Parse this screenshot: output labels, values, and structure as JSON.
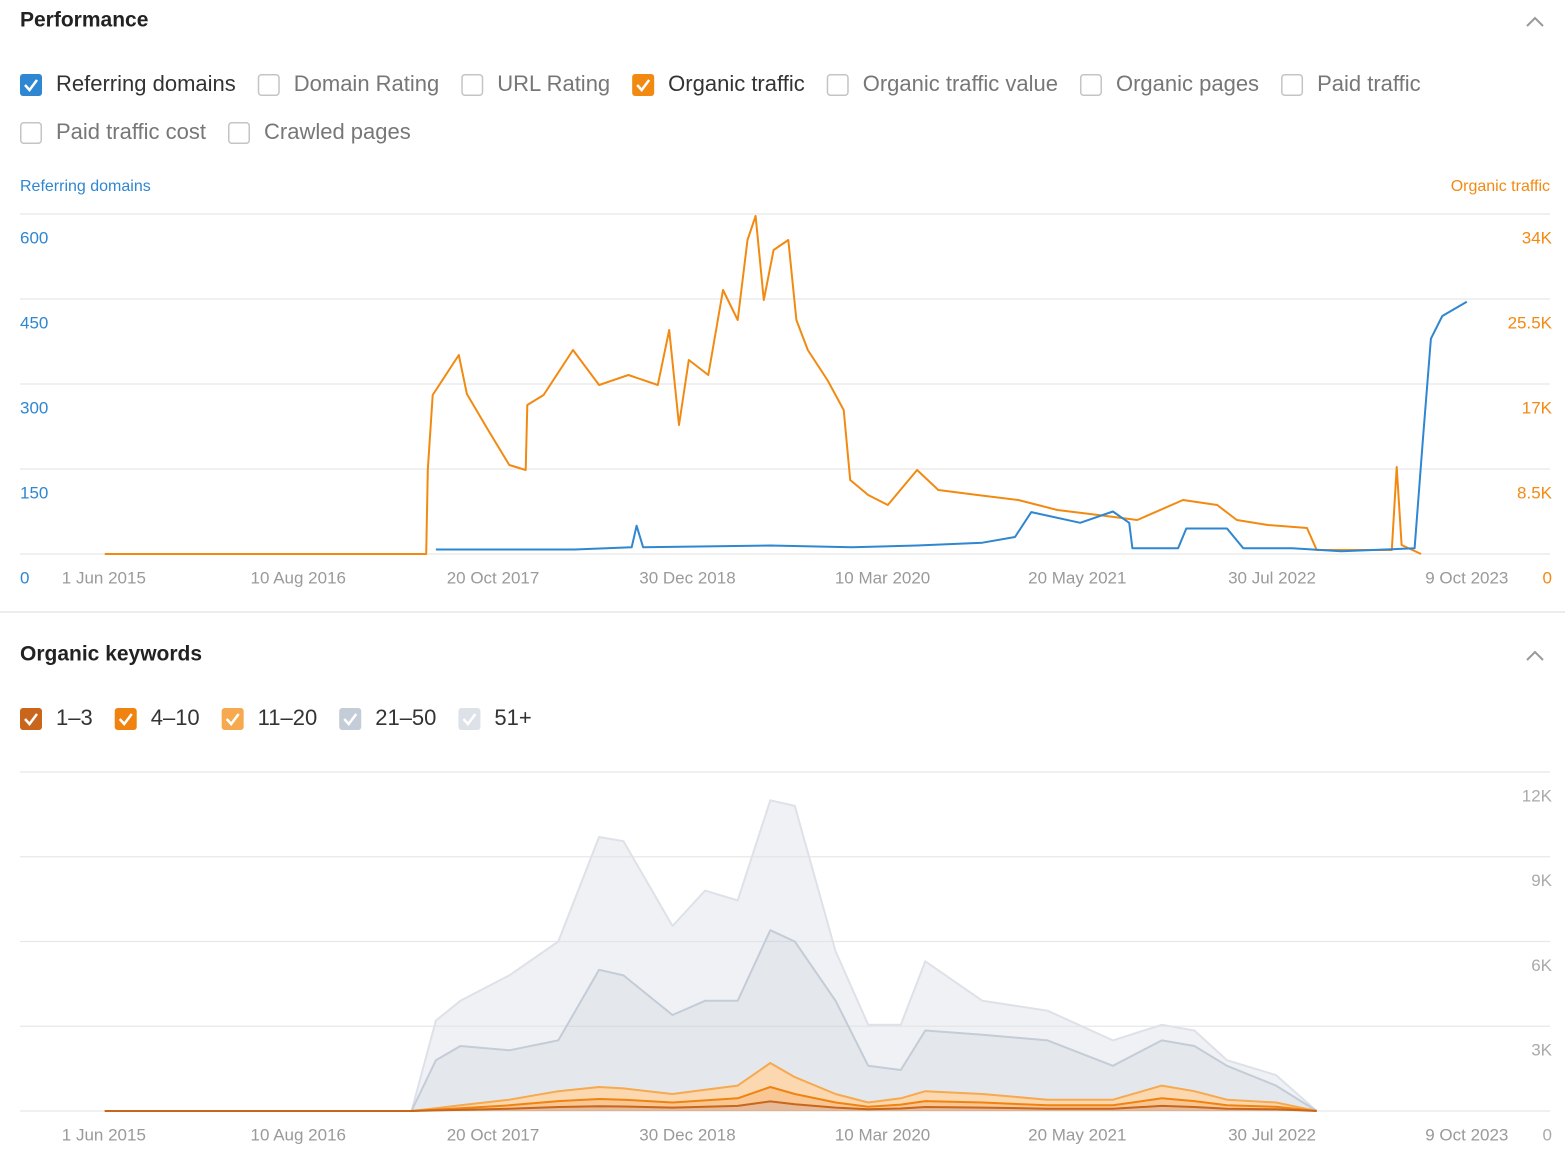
{
  "performance": {
    "title": "Performance",
    "options": [
      {
        "label": "Referring domains",
        "checked": true,
        "color": "#2f86d1"
      },
      {
        "label": "Domain Rating",
        "checked": false
      },
      {
        "label": "URL Rating",
        "checked": false
      },
      {
        "label": "Organic traffic",
        "checked": true,
        "color": "#f28a12"
      },
      {
        "label": "Organic traffic value",
        "checked": false
      },
      {
        "label": "Organic pages",
        "checked": false
      },
      {
        "label": "Paid traffic",
        "checked": false
      },
      {
        "label": "Paid traffic cost",
        "checked": false
      },
      {
        "label": "Crawled pages",
        "checked": false
      }
    ]
  },
  "organic_keywords": {
    "title": "Organic keywords"
  },
  "chart_data": [
    {
      "type": "line",
      "xlim": [
        2014.9,
        2024.28
      ],
      "xticks": [
        {
          "value": 2015.414,
          "label": "1 Jun 2015"
        },
        {
          "value": 2016.606,
          "label": "10 Aug 2016"
        },
        {
          "value": 2017.8,
          "label": "20 Oct 2017"
        },
        {
          "value": 2018.992,
          "label": "30 Dec 2018"
        },
        {
          "value": 2020.188,
          "label": "10 Mar 2020"
        },
        {
          "value": 2021.382,
          "label": "20 May 2021"
        },
        {
          "value": 2022.576,
          "label": "30 Jul 2022"
        },
        {
          "value": 2023.77,
          "label": "9 Oct 2023"
        }
      ],
      "ylim": [
        0,
        600
      ],
      "yticks": [
        0,
        150,
        300,
        450,
        600
      ],
      "y2lim": [
        0,
        34000
      ],
      "y2ticks": [
        {
          "value": 0,
          "label": "0"
        },
        {
          "value": 8500,
          "label": "8.5K"
        },
        {
          "value": 17000,
          "label": "17K"
        },
        {
          "value": 25500,
          "label": "25.5K"
        },
        {
          "value": 34000,
          "label": "34K"
        }
      ],
      "grid": true,
      "series": [
        {
          "name": "Referring domains",
          "color": "#2f86d1",
          "x": [
            2017.45,
            2018.3,
            2018.65,
            2018.68,
            2018.72,
            2019.5,
            2020.0,
            2020.4,
            2020.8,
            2021.0,
            2021.1,
            2021.4,
            2021.6,
            2021.7,
            2021.72,
            2022.0,
            2022.05,
            2022.3,
            2022.4,
            2022.7,
            2023.0,
            2023.45,
            2023.5,
            2023.55,
            2023.62,
            2023.77
          ],
          "values": [
            8,
            8,
            12,
            50,
            12,
            15,
            12,
            15,
            20,
            30,
            74,
            55,
            75,
            55,
            10,
            10,
            45,
            45,
            10,
            10,
            5,
            10,
            200,
            380,
            420,
            445
          ]
        },
        {
          "name": "Organic traffic",
          "color": "#f28a12",
          "axis": "y2",
          "x": [
            2015.42,
            2017.39,
            2017.4,
            2017.43,
            2017.59,
            2017.64,
            2017.77,
            2017.9,
            2018.0,
            2018.01,
            2018.11,
            2018.29,
            2018.45,
            2018.63,
            2018.81,
            2018.88,
            2018.94,
            2019.0,
            2019.12,
            2019.21,
            2019.3,
            2019.36,
            2019.41,
            2019.46,
            2019.52,
            2019.61,
            2019.66,
            2019.73,
            2019.85,
            2019.95,
            2019.99,
            2020.1,
            2020.22,
            2020.4,
            2020.53,
            2020.77,
            2021.02,
            2021.26,
            2021.51,
            2021.75,
            2022.03,
            2022.24,
            2022.36,
            2022.55,
            2022.79,
            2022.85,
            2023.31,
            2023.34,
            2023.37,
            2023.49
          ],
          "values": [
            0,
            0,
            8400,
            15900,
            19900,
            16000,
            12400,
            8900,
            8400,
            14900,
            15900,
            20400,
            16900,
            17900,
            16900,
            22400,
            12900,
            19400,
            17900,
            26400,
            23400,
            31400,
            33800,
            25400,
            30400,
            31400,
            23400,
            20400,
            17400,
            14400,
            7400,
            5900,
            4900,
            8400,
            6400,
            5900,
            5400,
            4400,
            3900,
            3400,
            5400,
            4900,
            3400,
            2900,
            2600,
            400,
            400,
            8700,
            900,
            0
          ]
        }
      ]
    },
    {
      "type": "area",
      "stacked": true,
      "xlim": [
        2014.9,
        2024.28
      ],
      "xticks": [
        {
          "value": 2015.414,
          "label": "1 Jun 2015"
        },
        {
          "value": 2016.606,
          "label": "10 Aug 2016"
        },
        {
          "value": 2017.8,
          "label": "20 Oct 2017"
        },
        {
          "value": 2018.992,
          "label": "30 Dec 2018"
        },
        {
          "value": 2020.188,
          "label": "10 Mar 2020"
        },
        {
          "value": 2021.382,
          "label": "20 May 2021"
        },
        {
          "value": 2022.576,
          "label": "30 Jul 2022"
        },
        {
          "value": 2023.77,
          "label": "9 Oct 2023"
        }
      ],
      "ylim": [
        0,
        12000
      ],
      "yticks": [
        {
          "value": 0,
          "label": "0"
        },
        {
          "value": 3000,
          "label": "3K"
        },
        {
          "value": 6000,
          "label": "6K"
        },
        {
          "value": 9000,
          "label": "9K"
        },
        {
          "value": 12000,
          "label": "12K"
        }
      ],
      "ytick_side": "right",
      "grid": true,
      "x": [
        2015.42,
        2017.3,
        2017.45,
        2017.6,
        2017.9,
        2018.2,
        2018.45,
        2018.6,
        2018.9,
        2019.1,
        2019.3,
        2019.5,
        2019.65,
        2019.9,
        2020.1,
        2020.3,
        2020.45,
        2020.8,
        2021.2,
        2021.6,
        2021.9,
        2022.1,
        2022.3,
        2022.6,
        2022.85
      ],
      "series": [
        {
          "name": "1–3",
          "color": "#c9661c",
          "values": [
            0,
            0,
            20,
            40,
            80,
            140,
            170,
            160,
            120,
            150,
            180,
            340,
            240,
            120,
            60,
            90,
            140,
            120,
            80,
            80,
            180,
            140,
            80,
            60,
            0
          ]
        },
        {
          "name": "4–10",
          "color": "#f0830f",
          "values": [
            0,
            0,
            30,
            60,
            120,
            210,
            255,
            240,
            180,
            225,
            270,
            510,
            360,
            180,
            90,
            135,
            210,
            180,
            120,
            120,
            270,
            210,
            120,
            90,
            0
          ]
        },
        {
          "name": "11–20",
          "color": "#f6a94e",
          "values": [
            0,
            0,
            50,
            100,
            200,
            350,
            425,
            400,
            300,
            375,
            450,
            850,
            600,
            300,
            150,
            225,
            350,
            300,
            200,
            200,
            450,
            350,
            200,
            150,
            0
          ]
        },
        {
          "name": "21–50",
          "color": "#c3ccd7",
          "values": [
            0,
            0,
            1700,
            2100,
            1750,
            1800,
            4150,
            4000,
            2800,
            3150,
            3000,
            4700,
            4800,
            3300,
            1300,
            1000,
            2150,
            2100,
            2100,
            1200,
            1600,
            1600,
            1200,
            600,
            0
          ]
        },
        {
          "name": "51+",
          "color": "#dde1e8",
          "values": [
            0,
            0,
            1400,
            1600,
            2650,
            3500,
            4700,
            4750,
            3150,
            3900,
            3550,
            4600,
            4800,
            1750,
            1450,
            1600,
            2450,
            1200,
            1050,
            900,
            550,
            550,
            200,
            370,
            0
          ]
        }
      ]
    }
  ]
}
